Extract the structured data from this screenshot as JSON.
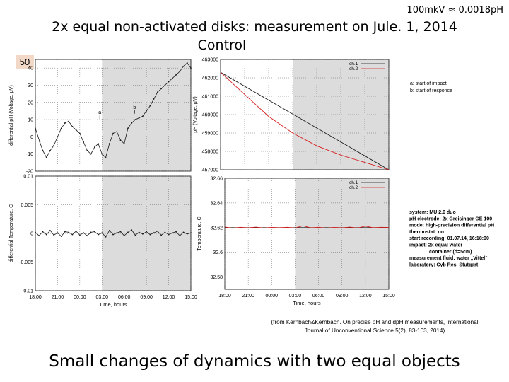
{
  "header": {
    "conversion_note": "100mkV ≈ 0.0018pH",
    "title": "2x equal non-activated disks: measurement on Jule. 1, 2014",
    "subtitle": "Control",
    "slide_number": "50"
  },
  "citation": "(from Kernbach&Kernbach. On precise pH and dpH measurements, International Journal of Unconventional Science 5(2), 83-103, 2014)",
  "footer": "Small changes of dynamics with two equal objects",
  "annotations": {
    "legend_ch1": "ch.1",
    "legend_ch2": "ch.2",
    "impact_legend_line1": "a: start of impact",
    "impact_legend_line2": "b: start of responce",
    "marker_a": "a",
    "marker_b": "b",
    "info_lines": [
      "system: MU 2.0 duo",
      "pH electrode: 2x Greisinger GE 100",
      "mode: high-precision differential pH",
      "thermostat: on",
      "start recording: 01.07.14, 16:18:00",
      "impact: 2x equal water",
      "container (d=5cm)",
      "measurement fluid: water „Vittel“",
      "laboratory: Cyb Res. Stutgart"
    ]
  },
  "colors": {
    "shade": "#dcdcdc",
    "ch1": "#1a1a1a",
    "ch2": "#d62020",
    "slide_badge": "#f2d9c7"
  },
  "chart_data": [
    {
      "type": "line",
      "ylabel": "differential pH (Voltage, μV)",
      "ylim": [
        -20,
        45
      ],
      "yticks": [
        "-20",
        "-10",
        "0",
        "10",
        "20",
        "30",
        "40"
      ],
      "xticks": [
        "18:00",
        "21:00",
        "00:00",
        "03:00",
        "06:00",
        "09:00",
        "12:00",
        "15:00"
      ],
      "xlim_hours": [
        0,
        21
      ],
      "shaded_from_hours": 9,
      "markers": [
        {
          "label": "a",
          "x": 8.7,
          "y": 10
        },
        {
          "label": "b",
          "x": 13.4,
          "y": 13
        }
      ],
      "series": [
        {
          "x": [
            0,
            0.6,
            1,
            1.5,
            2,
            2.5,
            3,
            3.5,
            4,
            4.5,
            5,
            5.5,
            6,
            6.5,
            7,
            7.5,
            8,
            8.5,
            9,
            9.5,
            10,
            10.5,
            11,
            11.5,
            12,
            12.5,
            13,
            13.5,
            14,
            14.5,
            15,
            15.5,
            16,
            16.5,
            17,
            17.5,
            18,
            18.5,
            19,
            19.5,
            20,
            20.5,
            21
          ],
          "y": [
            5,
            -3,
            -8,
            -12,
            -8,
            -5,
            0,
            5,
            8,
            9,
            6,
            4,
            2,
            -3,
            -8,
            -10,
            -6,
            -4,
            -10,
            -12,
            -4,
            2,
            3,
            -2,
            -4,
            5,
            8,
            10,
            11,
            12,
            15,
            18,
            22,
            26,
            28,
            30,
            32,
            34,
            36,
            38,
            41,
            43,
            40
          ]
        }
      ]
    },
    {
      "type": "line",
      "ylabel": "pH (Voltage, μV)",
      "ylim": [
        457000,
        463000
      ],
      "yticks": [
        "457000",
        "458000",
        "459000",
        "460000",
        "461000",
        "462000",
        "463000"
      ],
      "xticks": [
        "18:00",
        "21:00",
        "00:00",
        "03:00",
        "06:00",
        "09:00",
        "12:00",
        "15:00"
      ],
      "xlim_hours": [
        0,
        21
      ],
      "shaded_from_hours": 9,
      "series": [
        {
          "name": "ch.1",
          "x": [
            0,
            21
          ],
          "y": [
            462300,
            457000
          ]
        },
        {
          "name": "ch.2",
          "x": [
            0,
            3,
            6,
            9,
            12,
            15,
            18,
            21
          ],
          "y": [
            462300,
            461100,
            459900,
            459000,
            458300,
            457800,
            457400,
            457000
          ]
        }
      ]
    },
    {
      "type": "line",
      "ylabel": "differential Temperature, C",
      "xlabel": "Time, hours",
      "ylim": [
        -0.01,
        0.01
      ],
      "yticks": [
        "-0.01",
        "-0.005",
        "0",
        "0.005",
        "0.01"
      ],
      "xticks": [
        "18:00",
        "21:00",
        "00:00",
        "03:00",
        "06:00",
        "09:00",
        "12:00",
        "15:00"
      ],
      "xlim_hours": [
        0,
        21
      ],
      "shaded_from_hours": 9,
      "series": [
        {
          "x": [
            0,
            0.5,
            1,
            1.5,
            2,
            2.5,
            3,
            3.5,
            4,
            4.5,
            5,
            5.5,
            6,
            6.5,
            7,
            7.5,
            8,
            8.5,
            9,
            9.5,
            10,
            10.5,
            11,
            11.5,
            12,
            12.5,
            13,
            13.5,
            14,
            14.5,
            15,
            15.5,
            16,
            16.5,
            17,
            17.5,
            18,
            18.5,
            19,
            19.5,
            20,
            20.5,
            21
          ],
          "y": [
            0.0002,
            -0.0004,
            0.0003,
            -0.0002,
            0.0005,
            -0.0003,
            0.0001,
            -0.0005,
            0.0003,
            0.0002,
            -0.0002,
            0.0004,
            -0.0003,
            0.0001,
            -0.0004,
            0.0002,
            0.0003,
            -0.0002,
            0.0001,
            -0.0006,
            0.0005,
            -0.0002,
            0.0001,
            0.0003,
            -0.0004,
            0.0002,
            0.0006,
            -0.0003,
            0.0002,
            -0.0001,
            0.0003,
            -0.0002,
            0.0001,
            0.0004,
            -0.0003,
            0.0002,
            -0.0002,
            0.0001,
            0.0003,
            -0.0004,
            0.0002,
            -0.0001,
            0.0001
          ]
        }
      ]
    },
    {
      "type": "line",
      "ylabel": "Temperature, C",
      "xlabel": "Time, hours",
      "ylim": [
        32.57,
        32.66
      ],
      "yticks": [
        "32.58",
        "32.6",
        "32.62",
        "32.64",
        "32.66"
      ],
      "xticks": [
        "18:00",
        "21:00",
        "00:00",
        "03:00",
        "06:00",
        "09:00",
        "12:00",
        "15:00"
      ],
      "xlim_hours": [
        0,
        21
      ],
      "shaded_from_hours": 9,
      "series": [
        {
          "name": "ch.1",
          "x": [
            0,
            3,
            6,
            9,
            12,
            15,
            18,
            21
          ],
          "y": [
            32.62,
            32.62,
            32.62,
            32.62,
            32.62,
            32.62,
            32.62,
            32.62
          ]
        },
        {
          "name": "ch.2",
          "x": [
            0,
            1,
            2,
            3,
            4,
            5,
            6,
            7,
            8,
            9,
            10,
            11,
            12,
            13,
            14,
            15,
            16,
            17,
            18,
            19,
            20,
            21
          ],
          "y": [
            32.6205,
            32.6195,
            32.6203,
            32.6198,
            32.6204,
            32.6196,
            32.6202,
            32.6199,
            32.6203,
            32.6197,
            32.6215,
            32.6198,
            32.6203,
            32.6196,
            32.6202,
            32.6198,
            32.6204,
            32.6197,
            32.6212,
            32.6199,
            32.6203,
            32.6201
          ]
        }
      ]
    }
  ]
}
